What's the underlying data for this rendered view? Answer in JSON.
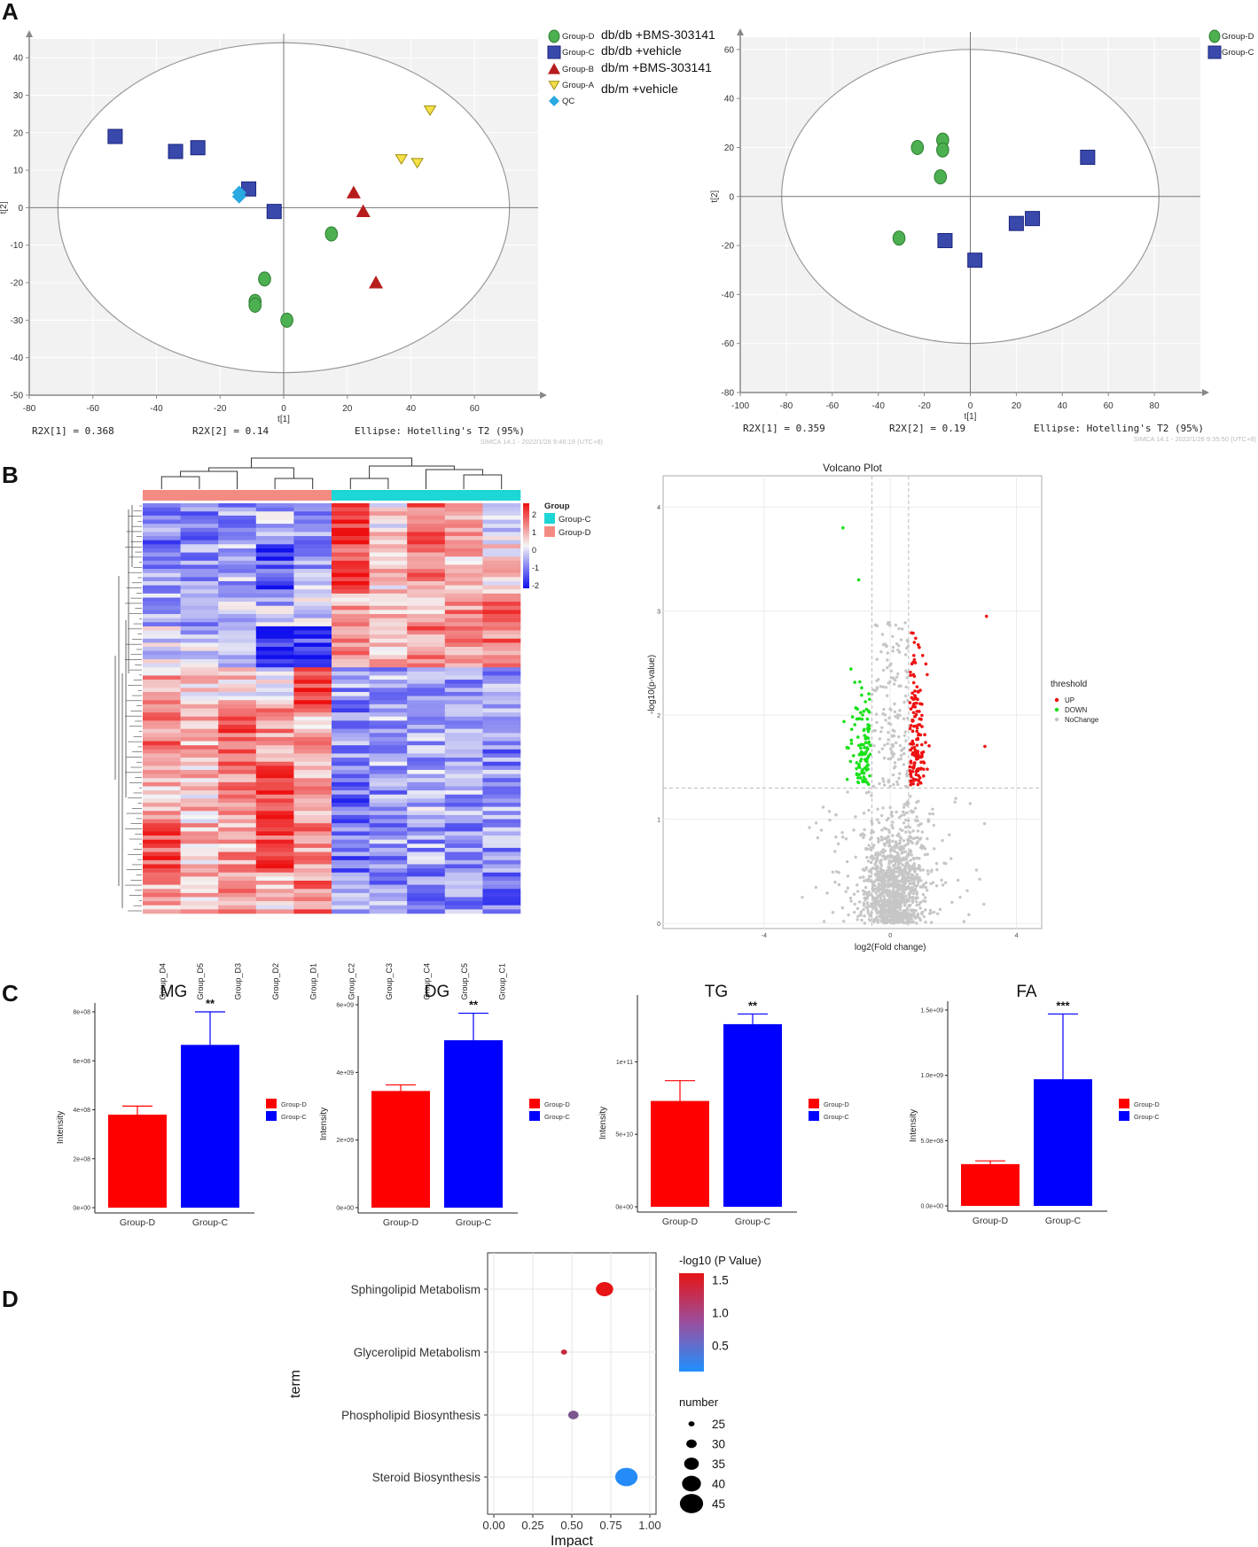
{
  "panel_labels": [
    "A",
    "B",
    "C",
    "D"
  ],
  "chart_data": [
    {
      "id": "pca-left",
      "type": "scatter",
      "title": "",
      "xlabel": "t[1]",
      "ylabel": "t[2]",
      "xlim": [
        -80,
        80
      ],
      "ylim": [
        -50,
        45
      ],
      "xticks": [
        -80,
        -60,
        -40,
        -20,
        0,
        20,
        40,
        60
      ],
      "yticks": [
        -50,
        -40,
        -30,
        -20,
        -10,
        0,
        10,
        20,
        30,
        40
      ],
      "ellipse": {
        "rx": 71,
        "ry": 44
      },
      "legend": [
        {
          "group": "Group-D",
          "label": "db/db +BMS-303141"
        },
        {
          "group": "Group-C",
          "label": "db/db +vehicle"
        },
        {
          "group": "Group-B",
          "label": "db/m +BMS-303141"
        },
        {
          "group": "Group-A",
          "label": "db/m +vehicle"
        },
        {
          "group": "QC",
          "label": ""
        }
      ],
      "series": [
        {
          "name": "Group-D",
          "marker": "circle",
          "color": "#4caf50",
          "points": [
            [
              15,
              -7
            ],
            [
              -6,
              -19
            ],
            [
              -9,
              -25
            ],
            [
              -9,
              -26
            ],
            [
              1,
              -30
            ]
          ]
        },
        {
          "name": "Group-C",
          "marker": "square",
          "color": "#3949ab",
          "points": [
            [
              -53,
              19
            ],
            [
              -34,
              15
            ],
            [
              -27,
              16
            ],
            [
              -11,
              5
            ],
            [
              -3,
              -1
            ]
          ]
        },
        {
          "name": "Group-B",
          "marker": "triangle-up",
          "color": "#b71c1c",
          "points": [
            [
              22,
              4
            ],
            [
              25,
              -1
            ],
            [
              29,
              -20
            ]
          ]
        },
        {
          "name": "Group-A",
          "marker": "triangle-down",
          "color": "#f5e048",
          "points": [
            [
              46,
              26
            ],
            [
              37,
              13
            ],
            [
              42,
              12
            ]
          ]
        },
        {
          "name": "QC",
          "marker": "diamond",
          "color": "#29a9e1",
          "points": [
            [
              -14,
              4
            ],
            [
              -14,
              3
            ]
          ]
        }
      ],
      "stats": [
        "R2X[1] = 0.368",
        "R2X[2] = 0.14",
        "Ellipse: Hotelling's T2 (95%)"
      ],
      "watermark": "SIMCA 14.1 - 2022/1/26 9:46:19 (UTC+8)"
    },
    {
      "id": "pca-right",
      "type": "scatter",
      "title": "",
      "xlabel": "t[1]",
      "ylabel": "t[2]",
      "xlim": [
        -100,
        100
      ],
      "ylim": [
        -80,
        65
      ],
      "xticks": [
        -100,
        -80,
        -60,
        -40,
        -20,
        0,
        20,
        40,
        60,
        80
      ],
      "yticks": [
        -80,
        -60,
        -40,
        -20,
        0,
        20,
        40,
        60
      ],
      "ellipse": {
        "rx": 82,
        "ry": 60
      },
      "legend": [
        {
          "group": "Group-D",
          "label": ""
        },
        {
          "group": "Group-C",
          "label": ""
        }
      ],
      "series": [
        {
          "name": "Group-D",
          "marker": "circle",
          "color": "#4caf50",
          "points": [
            [
              -23,
              20
            ],
            [
              -12,
              23
            ],
            [
              -12,
              19
            ],
            [
              -13,
              8
            ],
            [
              -31,
              -17
            ]
          ]
        },
        {
          "name": "Group-C",
          "marker": "square",
          "color": "#3949ab",
          "points": [
            [
              51,
              16
            ],
            [
              27,
              -9
            ],
            [
              20,
              -11
            ],
            [
              -11,
              -18
            ],
            [
              2,
              -26
            ]
          ]
        }
      ],
      "stats": [
        "R2X[1] = 0.359",
        "R2X[2] = 0.19",
        "Ellipse: Hotelling's T2 (95%)"
      ],
      "watermark": "SIMCA 14.1 - 2022/1/26 9:35:50 (UTC+8)"
    },
    {
      "id": "heatmap",
      "type": "heatmap",
      "title": "",
      "columns": [
        "Group_D4",
        "Group_D5",
        "Group_D3",
        "Group_D2",
        "Group_D1",
        "Group_C2",
        "Group_C3",
        "Group_C4",
        "Group_C5",
        "Group_C1"
      ],
      "column_groups": [
        "Group-D",
        "Group-D",
        "Group-D",
        "Group-D",
        "Group-D",
        "Group-C",
        "Group-C",
        "Group-C",
        "Group-C",
        "Group-C"
      ],
      "legend_title": "Group",
      "legend": [
        {
          "label": "Group-C",
          "color": "#1dd6d6"
        },
        {
          "label": "Group-D",
          "color": "#f38b83"
        }
      ],
      "color_scale": {
        "ticks": [
          2,
          1,
          0,
          -1,
          -2
        ],
        "low": "#1010ee",
        "mid": "#f5f5f5",
        "high": "#ee1010"
      },
      "row_blocks": [
        {
          "rows": 10,
          "values": [
            -1.0,
            -0.9,
            -0.8,
            -0.6,
            -0.8,
            1.8,
            0.2,
            1.2,
            0.8,
            -0.4
          ]
        },
        {
          "rows": 12,
          "values": [
            -0.8,
            -0.7,
            -0.6,
            -1.4,
            -0.6,
            1.6,
            0.4,
            0.9,
            0.6,
            0.2
          ]
        },
        {
          "rows": 8,
          "values": [
            -0.6,
            -0.8,
            -0.4,
            -0.5,
            -0.3,
            0.6,
            0.3,
            0.5,
            0.9,
            1.6
          ]
        },
        {
          "rows": 10,
          "values": [
            -0.2,
            -0.4,
            -0.3,
            -1.8,
            -1.6,
            0.8,
            0.6,
            1.0,
            0.9,
            1.0
          ]
        },
        {
          "rows": 10,
          "values": [
            0.6,
            0.4,
            0.3,
            0.0,
            1.8,
            -0.8,
            -0.6,
            -0.6,
            -0.8,
            -0.8
          ]
        },
        {
          "rows": 14,
          "values": [
            1.0,
            0.7,
            1.4,
            0.8,
            0.6,
            -0.9,
            -0.7,
            -0.6,
            -0.8,
            -0.9
          ]
        },
        {
          "rows": 14,
          "values": [
            0.5,
            0.4,
            0.9,
            1.6,
            0.8,
            -1.2,
            -0.8,
            -0.6,
            -0.7,
            -0.8
          ]
        },
        {
          "rows": 12,
          "values": [
            1.4,
            0.5,
            0.7,
            1.5,
            0.9,
            -1.1,
            -0.8,
            -0.7,
            -0.9,
            -0.8
          ]
        },
        {
          "rows": 10,
          "values": [
            0.6,
            0.6,
            1.0,
            0.4,
            1.0,
            -0.7,
            -0.8,
            -0.9,
            -0.9,
            -1.2
          ]
        }
      ]
    },
    {
      "id": "volcano",
      "type": "scatter",
      "title": "Volcano Plot",
      "xlabel": "log2(Fold change)",
      "ylabel": "-log10(p-value)",
      "xlim": [
        -7.2,
        4.8
      ],
      "ylim": [
        -0.05,
        4.3
      ],
      "xticks": [
        -4,
        0,
        4
      ],
      "yticks": [
        0,
        1,
        2,
        3,
        4
      ],
      "fc_threshold": [
        -0.58,
        0.58
      ],
      "p_threshold": 1.3,
      "legend_title": "threshold",
      "legend": [
        {
          "label": "UP",
          "color": "#ee1111"
        },
        {
          "label": "DOWN",
          "color": "#19e019"
        },
        {
          "label": "NoChange",
          "color": "#c6c6c6"
        }
      ],
      "counts": {
        "UP": 150,
        "DOWN": 110,
        "NoChange": 1400
      },
      "outliers": {
        "UP": [
          [
            3.05,
            2.95
          ],
          [
            3.0,
            1.7
          ]
        ],
        "DOWN": [
          [
            -1.5,
            3.8
          ],
          [
            -1.0,
            3.3
          ]
        ]
      }
    },
    {
      "id": "bar-mg",
      "type": "bar",
      "title": "MG",
      "xlabel": "",
      "ylabel": "Intensity",
      "ylim": [
        0,
        800000000
      ],
      "yticks": [
        0,
        200000000,
        400000000,
        600000000,
        800000000
      ],
      "ytick_labels": [
        "0e+00",
        "2e+08",
        "4e+08",
        "6e+08",
        "8e+08"
      ],
      "categories": [
        "Group-D",
        "Group-C"
      ],
      "values": [
        380000000,
        665000000
      ],
      "errors": [
        35000000,
        135000000
      ],
      "significance": "**",
      "colors": [
        "#ff0000",
        "#0000ff"
      ]
    },
    {
      "id": "bar-dg",
      "type": "bar",
      "title": "DG",
      "xlabel": "",
      "ylabel": "Intensity",
      "ylim": [
        0,
        6000000000
      ],
      "yticks": [
        0,
        2000000000,
        4000000000,
        6000000000
      ],
      "ytick_labels": [
        "0e+00",
        "2e+09",
        "4e+09",
        "6e+09"
      ],
      "categories": [
        "Group-D",
        "Group-C"
      ],
      "values": [
        3450000000,
        4950000000
      ],
      "errors": [
        180000000,
        800000000
      ],
      "significance": "**",
      "colors": [
        "#ff0000",
        "#0000ff"
      ]
    },
    {
      "id": "bar-tg",
      "type": "bar",
      "title": "TG",
      "xlabel": "",
      "ylabel": "Intensity",
      "ylim": [
        0,
        140000000000
      ],
      "yticks": [
        0,
        50000000000,
        100000000000
      ],
      "ytick_labels": [
        "0e+00",
        "5e+10",
        "1e+11"
      ],
      "categories": [
        "Group-D",
        "Group-C"
      ],
      "values": [
        73000000000,
        126000000000
      ],
      "errors": [
        14000000000,
        7000000000
      ],
      "significance": "**",
      "colors": [
        "#ff0000",
        "#0000ff"
      ]
    },
    {
      "id": "bar-fa",
      "type": "bar",
      "title": "FA",
      "xlabel": "",
      "ylabel": "Intensity",
      "ylim": [
        0,
        1500000000
      ],
      "yticks": [
        0,
        500000000,
        1000000000,
        1500000000
      ],
      "ytick_labels": [
        "0.0e+00",
        "5.0e+08",
        "1.0e+09",
        "1.5e+09"
      ],
      "categories": [
        "Group-D",
        "Group-C"
      ],
      "values": [
        320000000,
        970000000
      ],
      "errors": [
        25000000,
        500000000
      ],
      "significance": "***",
      "colors": [
        "#ff0000",
        "#0000ff"
      ]
    },
    {
      "id": "bubble",
      "type": "scatter",
      "title": "",
      "xlabel": "Impact",
      "ylabel": "term",
      "xlim": [
        -0.04,
        1.04
      ],
      "xticks": [
        0.0,
        0.25,
        0.5,
        0.75,
        1.0
      ],
      "xtick_labels": [
        "0.00",
        "0.25",
        "0.50",
        "0.75",
        "1.00"
      ],
      "categories": [
        "Sphingolipid Metabolism",
        "Glycerolipid Metabolism",
        "Phospholipid Biosynthesis",
        "Steroid Biosynthesis"
      ],
      "points": [
        {
          "term": "Sphingolipid Metabolism",
          "impact": 0.71,
          "p": 1.6,
          "number": 38
        },
        {
          "term": "Glycerolipid Metabolism",
          "impact": 0.45,
          "p": 1.35,
          "number": 25
        },
        {
          "term": "Phospholipid Biosynthesis",
          "impact": 0.51,
          "p": 0.8,
          "number": 30
        },
        {
          "term": "Steroid Biosynthesis",
          "impact": 0.85,
          "p": 0.15,
          "number": 44
        }
      ],
      "color_legend_title": "-log10 (P Value)",
      "color_ticks": [
        1.5,
        1.0,
        0.5
      ],
      "color_range": [
        0.1,
        1.6
      ],
      "size_legend_title": "number",
      "size_ticks": [
        25,
        30,
        35,
        40,
        45
      ]
    }
  ]
}
